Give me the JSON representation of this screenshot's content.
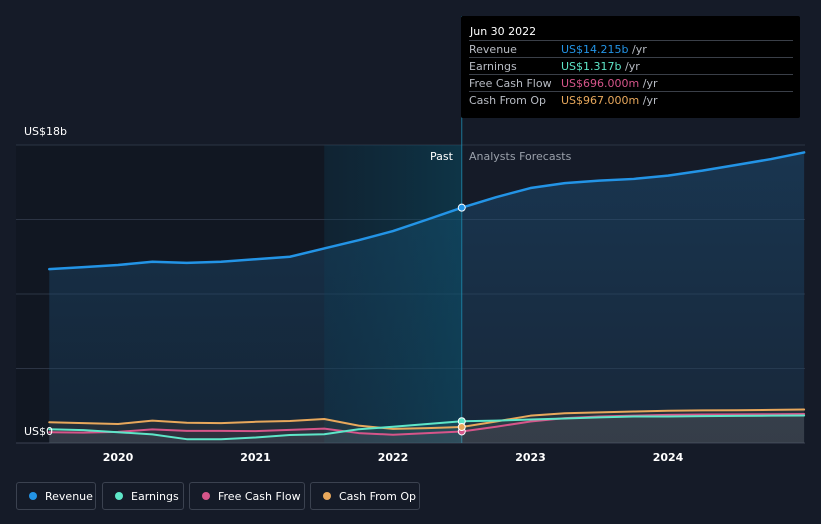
{
  "chart_data": {
    "type": "line",
    "y_axis": {
      "max_label": "US$18b",
      "min_label": "US$0",
      "ylim": [
        0,
        18000
      ]
    },
    "x_axis": {
      "tick_labels": [
        "2020",
        "2021",
        "2022",
        "2023",
        "2024"
      ]
    },
    "sections": {
      "past": "Past",
      "forecast": "Analysts Forecasts"
    },
    "series": [
      {
        "name": "Revenue",
        "color": "#2394e6",
        "points": [
          [
            2019.5,
            10500
          ],
          [
            2019.75,
            10620
          ],
          [
            2020.0,
            10750
          ],
          [
            2020.25,
            10950
          ],
          [
            2020.5,
            10880
          ],
          [
            2020.75,
            10950
          ],
          [
            2021.0,
            11100
          ],
          [
            2021.25,
            11250
          ],
          [
            2021.5,
            11750
          ],
          [
            2021.75,
            12250
          ],
          [
            2022.0,
            12800
          ],
          [
            2022.25,
            13500
          ],
          [
            2022.5,
            14215
          ],
          [
            2022.75,
            14850
          ],
          [
            2023.0,
            15400
          ],
          [
            2023.25,
            15700
          ],
          [
            2023.5,
            15850
          ],
          [
            2023.75,
            15950
          ],
          [
            2024.0,
            16150
          ],
          [
            2024.25,
            16450
          ],
          [
            2024.5,
            16800
          ],
          [
            2024.75,
            17150
          ],
          [
            2024.99,
            17550
          ]
        ]
      },
      {
        "name": "Earnings",
        "color": "#5ee6c8",
        "points": [
          [
            2019.5,
            830
          ],
          [
            2019.75,
            780
          ],
          [
            2020.0,
            650
          ],
          [
            2020.25,
            520
          ],
          [
            2020.5,
            230
          ],
          [
            2020.75,
            230
          ],
          [
            2021.0,
            330
          ],
          [
            2021.25,
            480
          ],
          [
            2021.5,
            530
          ],
          [
            2021.75,
            830
          ],
          [
            2022.0,
            980
          ],
          [
            2022.25,
            1150
          ],
          [
            2022.5,
            1317
          ],
          [
            2022.75,
            1350
          ],
          [
            2023.0,
            1420
          ],
          [
            2023.25,
            1480
          ],
          [
            2023.5,
            1550
          ],
          [
            2023.75,
            1600
          ],
          [
            2024.0,
            1600
          ],
          [
            2024.25,
            1620
          ],
          [
            2024.5,
            1640
          ],
          [
            2024.75,
            1650
          ],
          [
            2024.99,
            1660
          ]
        ]
      },
      {
        "name": "Free Cash Flow",
        "color": "#d6558a",
        "points": [
          [
            2019.5,
            650
          ],
          [
            2019.75,
            630
          ],
          [
            2020.0,
            670
          ],
          [
            2020.25,
            820
          ],
          [
            2020.5,
            730
          ],
          [
            2020.75,
            730
          ],
          [
            2021.0,
            720
          ],
          [
            2021.25,
            790
          ],
          [
            2021.5,
            870
          ],
          [
            2021.75,
            600
          ],
          [
            2022.0,
            500
          ],
          [
            2022.25,
            600
          ],
          [
            2022.5,
            696
          ],
          [
            2022.75,
            980
          ],
          [
            2023.0,
            1300
          ],
          [
            2023.25,
            1500
          ],
          [
            2023.5,
            1600
          ],
          [
            2023.75,
            1650
          ],
          [
            2024.0,
            1700
          ],
          [
            2024.25,
            1720
          ],
          [
            2024.5,
            1730
          ],
          [
            2024.75,
            1740
          ],
          [
            2024.99,
            1750
          ]
        ]
      },
      {
        "name": "Cash From Op",
        "color": "#e8a85c",
        "points": [
          [
            2019.5,
            1250
          ],
          [
            2019.75,
            1200
          ],
          [
            2020.0,
            1150
          ],
          [
            2020.25,
            1350
          ],
          [
            2020.5,
            1220
          ],
          [
            2020.75,
            1200
          ],
          [
            2021.0,
            1280
          ],
          [
            2021.25,
            1330
          ],
          [
            2021.5,
            1450
          ],
          [
            2021.75,
            1050
          ],
          [
            2022.0,
            850
          ],
          [
            2022.25,
            900
          ],
          [
            2022.5,
            967
          ],
          [
            2022.75,
            1300
          ],
          [
            2023.0,
            1650
          ],
          [
            2023.25,
            1800
          ],
          [
            2023.5,
            1850
          ],
          [
            2023.75,
            1900
          ],
          [
            2024.0,
            1950
          ],
          [
            2024.25,
            1970
          ],
          [
            2024.5,
            1980
          ],
          [
            2024.75,
            2000
          ],
          [
            2024.99,
            2020
          ]
        ]
      }
    ],
    "tooltip": {
      "date": "Jun 30 2022",
      "rows": [
        {
          "label": "Revenue",
          "value": "US$14.215b",
          "unit": "/yr",
          "color": "#2394e6"
        },
        {
          "label": "Earnings",
          "value": "US$1.317b",
          "unit": "/yr",
          "color": "#5ee6c8"
        },
        {
          "label": "Free Cash Flow",
          "value": "US$696.000m",
          "unit": "/yr",
          "color": "#d6558a"
        },
        {
          "label": "Cash From Op",
          "value": "US$967.000m",
          "unit": "/yr",
          "color": "#e8a85c"
        }
      ]
    },
    "legend": [
      {
        "label": "Revenue",
        "color": "#2394e6"
      },
      {
        "label": "Earnings",
        "color": "#5ee6c8"
      },
      {
        "label": "Free Cash Flow",
        "color": "#d6558a"
      },
      {
        "label": "Cash From Op",
        "color": "#e8a85c"
      }
    ],
    "past_end": 2022.5,
    "shade_start": 2021.5,
    "grid": true,
    "legend_position": "bottom-left"
  }
}
